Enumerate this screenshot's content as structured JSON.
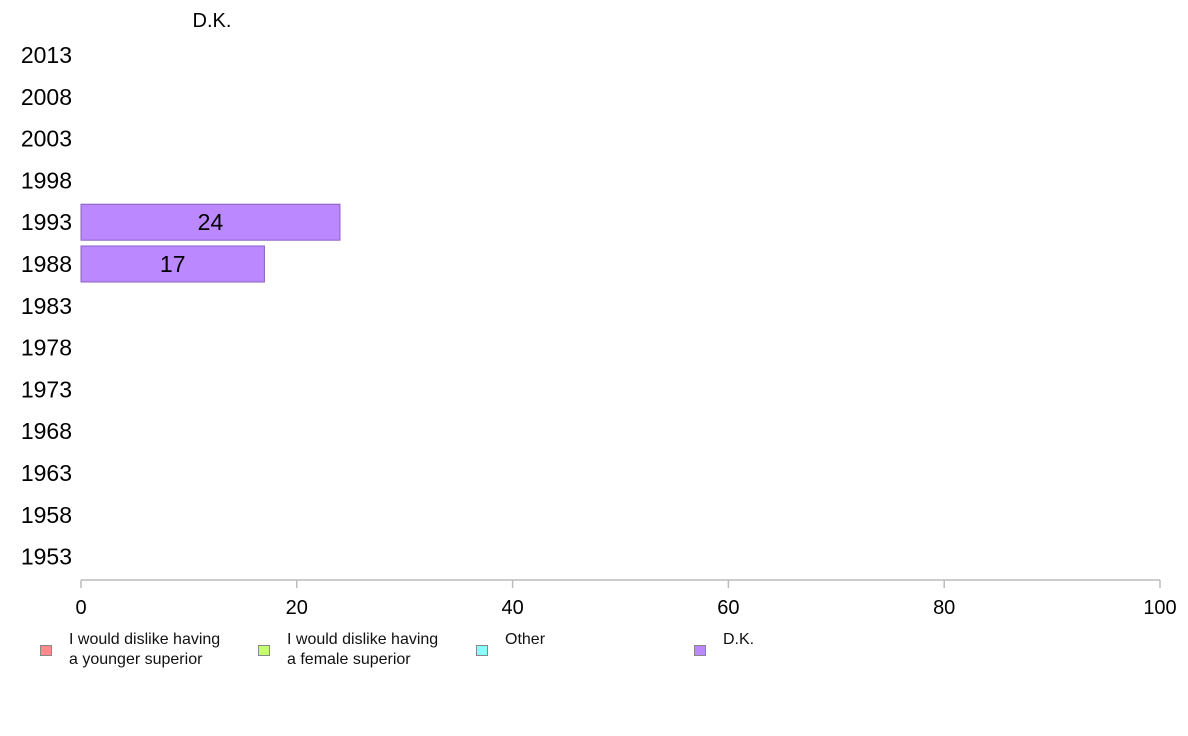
{
  "chart_data": {
    "type": "bar",
    "orientation": "horizontal",
    "title": "D.K.",
    "categories": [
      "2013",
      "2008",
      "2003",
      "1998",
      "1993",
      "1988",
      "1983",
      "1978",
      "1973",
      "1968",
      "1963",
      "1958",
      "1953"
    ],
    "series": [
      {
        "name": "D.K.",
        "color": "#bb88ff",
        "values": [
          null,
          null,
          null,
          null,
          24,
          17,
          null,
          null,
          null,
          null,
          null,
          null,
          null
        ],
        "labels": [
          "",
          "",
          "",
          "",
          "24",
          "17",
          "",
          "",
          "",
          "",
          "",
          "",
          ""
        ]
      }
    ],
    "xlim": [
      0,
      100
    ],
    "xticks": [
      "0",
      "20",
      "40",
      "60",
      "80",
      "100"
    ],
    "grid": false,
    "legend_position": "bottom",
    "legend": [
      {
        "label": "I would dislike having\na younger superior",
        "color": "#ff8c8c"
      },
      {
        "label": "I would dislike having\na female superior",
        "color": "#c4ff70"
      },
      {
        "label": "Other",
        "color": "#88ffff"
      },
      {
        "label": "D.K.",
        "color": "#bb88ff"
      }
    ]
  }
}
